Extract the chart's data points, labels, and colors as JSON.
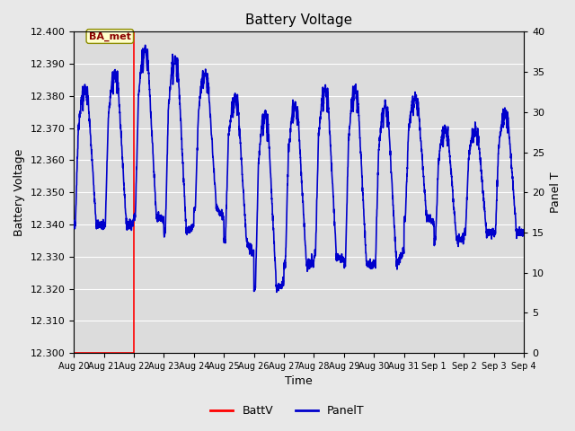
{
  "title": "Battery Voltage",
  "xlabel": "Time",
  "ylabel_left": "Battery Voltage",
  "ylabel_right": "Panel T",
  "ylim_left": [
    12.3,
    12.4
  ],
  "ylim_right": [
    0,
    40
  ],
  "yticks_left": [
    12.3,
    12.31,
    12.32,
    12.33,
    12.34,
    12.35,
    12.36,
    12.37,
    12.38,
    12.39,
    12.4
  ],
  "yticks_right": [
    0,
    5,
    10,
    15,
    20,
    25,
    30,
    35,
    40
  ],
  "xtick_labels": [
    "Aug 20",
    "Aug 21",
    "Aug 22",
    "Aug 23",
    "Aug 24",
    "Aug 25",
    "Aug 26",
    "Aug 27",
    "Aug 28",
    "Aug 29",
    "Aug 30",
    "Aug 31",
    "Sep 1",
    "Sep 2",
    "Sep 3",
    "Sep 4"
  ],
  "annotation_text": "BA_met",
  "line_color_batt": "#ff0000",
  "line_color_panel": "#0000cc",
  "grid_color": "#ffffff",
  "plot_bg_color": "#dcdcdc",
  "fig_bg_color": "#e8e8e8",
  "title_fontsize": 11,
  "label_fontsize": 9,
  "tick_fontsize": 8
}
